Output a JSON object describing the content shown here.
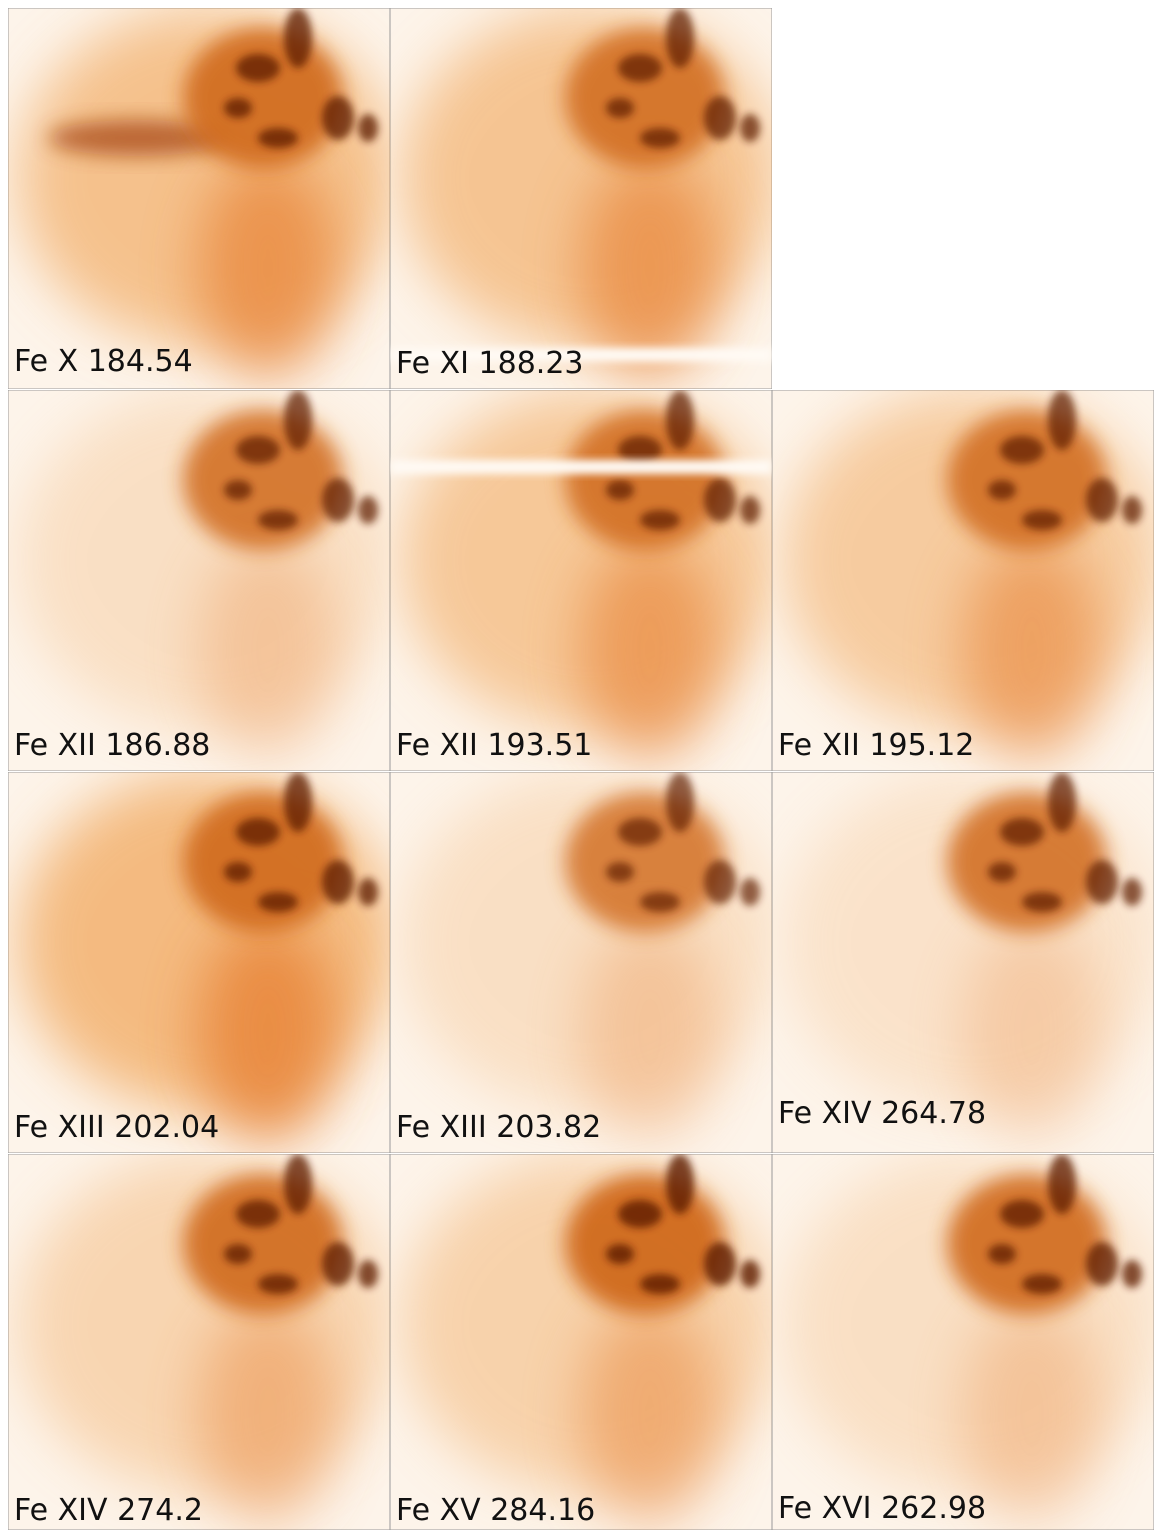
{
  "panels": [
    {
      "label": "Fe X 184.54"
    },
    {
      "label": "Fe XI 188.23"
    },
    {
      "label": "Fe XII 186.88"
    },
    {
      "label": "Fe XII 193.51"
    },
    {
      "label": "Fe XII 195.12"
    },
    {
      "label": "Fe XIII 202.04"
    },
    {
      "label": "Fe XIII 203.82"
    },
    {
      "label": "Fe XIV 264.78"
    },
    {
      "label": "Fe XIV 274.2"
    },
    {
      "label": "Fe XV 284.16"
    },
    {
      "label": "Fe XVI 262.98"
    }
  ]
}
